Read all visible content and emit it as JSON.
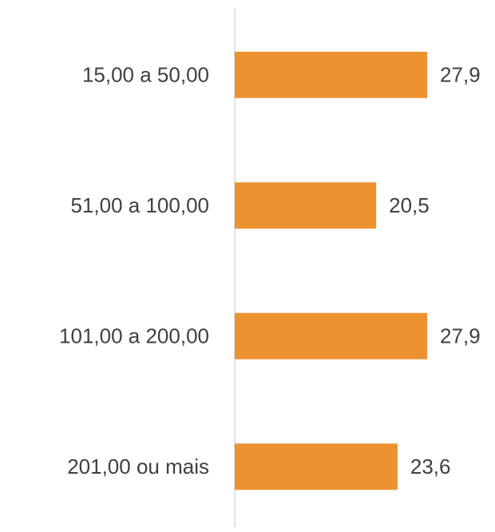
{
  "chart_data": {
    "type": "barh",
    "categories": [
      "15,00 a 50,00",
      "51,00 a 100,00",
      "101,00 a 200,00",
      "201,00 ou mais"
    ],
    "values": [
      27.9,
      20.5,
      27.9,
      23.6
    ],
    "value_labels": [
      "27,9",
      "20,5",
      "27,9",
      "23,6"
    ],
    "color": "#ed9230"
  }
}
